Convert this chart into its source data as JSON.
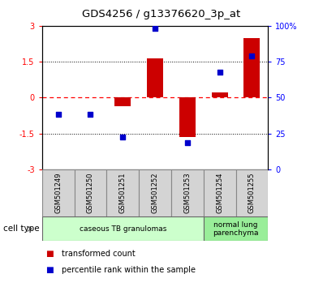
{
  "title": "GDS4256 / g13376620_3p_at",
  "samples": [
    "GSM501249",
    "GSM501250",
    "GSM501251",
    "GSM501252",
    "GSM501253",
    "GSM501254",
    "GSM501255"
  ],
  "bar_values": [
    0.0,
    0.0,
    -0.35,
    1.65,
    -1.65,
    0.2,
    2.5
  ],
  "percentile_values": [
    -0.7,
    -0.7,
    -1.65,
    2.9,
    -1.9,
    1.05,
    1.75
  ],
  "bar_color": "#cc0000",
  "dot_color": "#0000cc",
  "ylim_left": [
    -3,
    3
  ],
  "ylim_right": [
    0,
    100
  ],
  "yticks_left": [
    -3,
    -1.5,
    0,
    1.5,
    3
  ],
  "ytick_labels_left": [
    "-3",
    "-1.5",
    "0",
    "1.5",
    "3"
  ],
  "yticks_right": [
    0,
    25,
    50,
    75,
    100
  ],
  "ytick_labels_right": [
    "0",
    "25",
    "50",
    "75",
    "100%"
  ],
  "hlines_dotted": [
    -1.5,
    1.5
  ],
  "hline_dashed_red": 0.0,
  "cell_type_groups": [
    {
      "label": "caseous TB granulomas",
      "indices": [
        0,
        1,
        2,
        3,
        4
      ],
      "color": "#ccffcc"
    },
    {
      "label": "normal lung\nparenchyma",
      "indices": [
        5,
        6
      ],
      "color": "#99ee99"
    }
  ],
  "legend_items": [
    {
      "label": "transformed count",
      "color": "#cc0000"
    },
    {
      "label": "percentile rank within the sample",
      "color": "#0000cc"
    }
  ],
  "cell_type_label": "cell type",
  "background_color": "#ffffff",
  "sample_box_color": "#d4d4d4",
  "bar_width": 0.5
}
